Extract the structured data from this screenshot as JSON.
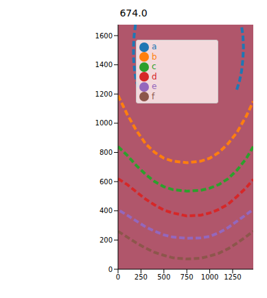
{
  "chart_data": {
    "type": "line",
    "title": "674.0",
    "xlim": [
      0,
      1475
    ],
    "xticks": [
      0,
      250,
      500,
      750,
      1000,
      1250
    ],
    "ylim": [
      0,
      1675
    ],
    "yticks": [
      0,
      200,
      400,
      600,
      800,
      1000,
      1200,
      1400,
      1600
    ],
    "legend": "upper center",
    "grid": false,
    "marker": "circle",
    "line_style": "dashed",
    "series": [
      {
        "name": "a",
        "color": "#1f77b4",
        "x": [
          190,
          175,
          168,
          170,
          180,
          198,
          225,
          770,
          1295,
          1325,
          1348,
          1362,
          1368,
          1362,
          1345
        ],
        "values": [
          1675,
          1600,
          1520,
          1440,
          1360,
          1290,
          1230,
          null,
          1230,
          1290,
          1360,
          1440,
          1520,
          1600,
          1675
        ]
      },
      {
        "name": "b",
        "color": "#ff7f0e",
        "x": [
          0,
          100,
          200,
          300,
          400,
          500,
          600,
          750,
          900,
          1000,
          1100,
          1200,
          1300,
          1400,
          1475
        ],
        "values": [
          1190,
          1060,
          950,
          860,
          800,
          760,
          740,
          730,
          740,
          760,
          800,
          860,
          940,
          1050,
          1150
        ]
      },
      {
        "name": "c",
        "color": "#2ca02c",
        "x": [
          0,
          100,
          200,
          300,
          400,
          500,
          600,
          750,
          900,
          1000,
          1100,
          1200,
          1300,
          1400,
          1475
        ],
        "values": [
          840,
          780,
          710,
          650,
          600,
          565,
          545,
          535,
          540,
          555,
          580,
          620,
          680,
          760,
          840
        ]
      },
      {
        "name": "d",
        "color": "#d62728",
        "x": [
          0,
          100,
          200,
          300,
          400,
          500,
          600,
          750,
          900,
          1000,
          1100,
          1200,
          1300,
          1400,
          1475
        ],
        "values": [
          620,
          580,
          530,
          480,
          440,
          405,
          385,
          365,
          370,
          385,
          410,
          445,
          500,
          560,
          615
        ]
      },
      {
        "name": "e",
        "color": "#9467bd",
        "x": [
          20,
          100,
          200,
          300,
          400,
          500,
          600,
          750,
          900,
          1000,
          1100,
          1200,
          1300,
          1400,
          1475
        ],
        "values": [
          400,
          370,
          330,
          290,
          260,
          235,
          220,
          212,
          215,
          225,
          250,
          285,
          330,
          375,
          410
        ]
      },
      {
        "name": "f",
        "color": "#8c564b",
        "x": [
          0,
          100,
          200,
          300,
          400,
          500,
          600,
          750,
          900,
          1000,
          1100,
          1200,
          1300,
          1400,
          1475
        ],
        "values": [
          260,
          220,
          180,
          145,
          115,
          95,
          78,
          70,
          75,
          90,
          110,
          140,
          180,
          225,
          260
        ]
      }
    ]
  }
}
